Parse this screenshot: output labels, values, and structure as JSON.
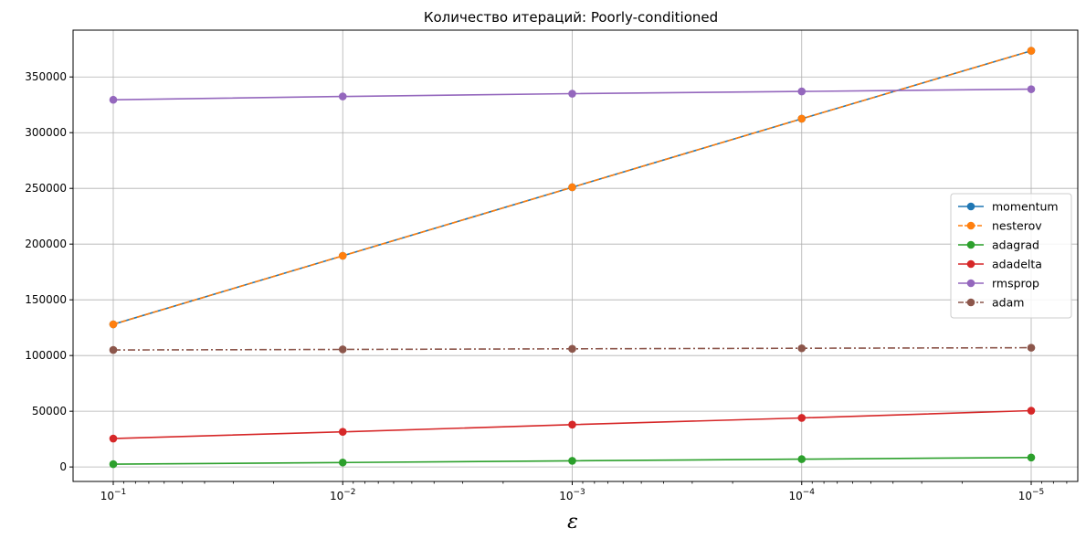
{
  "chart_data": {
    "type": "line",
    "title": "Количество итераций: Poorly-conditioned",
    "xlabel": "ε",
    "ylabel": "",
    "xscale": "log",
    "x_reversed": true,
    "x": [
      0.1,
      0.01,
      0.001,
      0.0001,
      1e-05
    ],
    "x_tick_labels": [
      {
        "base": "10",
        "exp": "−1"
      },
      {
        "base": "10",
        "exp": "−2"
      },
      {
        "base": "10",
        "exp": "−3"
      },
      {
        "base": "10",
        "exp": "−4"
      },
      {
        "base": "10",
        "exp": "−5"
      }
    ],
    "ylim": [
      -13000,
      392000
    ],
    "y_ticks": [
      0,
      50000,
      100000,
      150000,
      200000,
      250000,
      300000,
      350000
    ],
    "y_tick_labels": [
      "0",
      "50000",
      "100000",
      "150000",
      "200000",
      "250000",
      "300000",
      "350000"
    ],
    "grid": true,
    "legend_position": "center-right",
    "series": [
      {
        "name": "momentum",
        "color": "#1f77b4",
        "dash": "solid",
        "values": [
          128000,
          189500,
          251000,
          312500,
          373500
        ]
      },
      {
        "name": "nesterov",
        "color": "#ff7f0e",
        "dash": "dashed",
        "values": [
          128000,
          189500,
          251000,
          312500,
          373500
        ]
      },
      {
        "name": "adagrad",
        "color": "#2ca02c",
        "dash": "solid",
        "values": [
          2500,
          4000,
          5500,
          7000,
          8500
        ]
      },
      {
        "name": "adadelta",
        "color": "#d62728",
        "dash": "solid",
        "values": [
          25500,
          31500,
          38000,
          44000,
          50500
        ]
      },
      {
        "name": "rmsprop",
        "color": "#9467bd",
        "dash": "solid",
        "values": [
          329500,
          332500,
          335000,
          337000,
          339000
        ]
      },
      {
        "name": "adam",
        "color": "#8c564b",
        "dash": "dashdot",
        "values": [
          105000,
          105500,
          106000,
          106500,
          107000
        ]
      }
    ]
  }
}
